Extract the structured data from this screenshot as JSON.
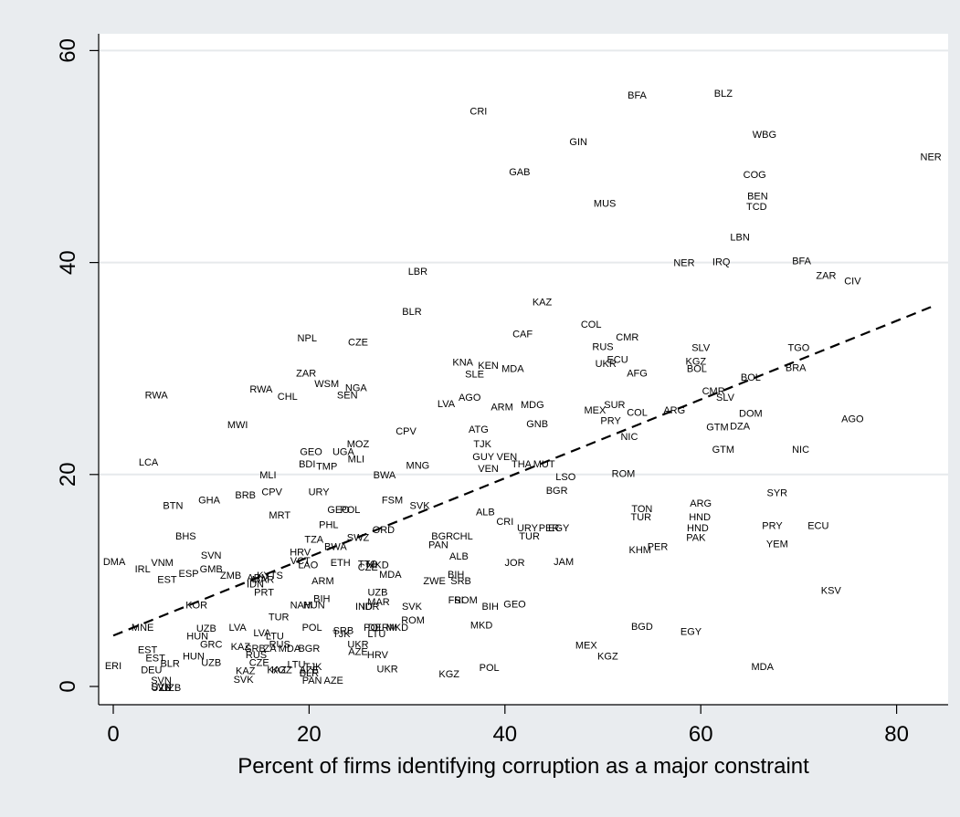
{
  "chart_data": {
    "type": "scatter",
    "title": "",
    "xlabel": "Percent of firms identifying corruption as a major constraint",
    "ylabel": "",
    "xlim": [
      -2,
      85
    ],
    "ylim": [
      -1.5,
      61.5
    ],
    "xticks": [
      0,
      20,
      40,
      60,
      80
    ],
    "yticks": [
      0,
      20,
      40,
      60
    ],
    "xtick_labels": [
      "0",
      "20",
      "40",
      "60",
      "80"
    ],
    "ytick_labels": [
      "0",
      "20",
      "40",
      "60"
    ],
    "grid": "horizontal",
    "legend": "none",
    "fit_line": {
      "style": "dashed",
      "x": [
        0,
        83.5
      ],
      "y": [
        4.8,
        35.8
      ]
    },
    "points": [
      {
        "label": "CRI",
        "x": 37.3,
        "y": 54.3
      },
      {
        "label": "BFA",
        "x": 53.5,
        "y": 55.8
      },
      {
        "label": "BLZ",
        "x": 62.3,
        "y": 56.0
      },
      {
        "label": "GIN",
        "x": 47.5,
        "y": 51.4
      },
      {
        "label": "WBG",
        "x": 66.5,
        "y": 52.1
      },
      {
        "label": "NER",
        "x": 83.5,
        "y": 50.0
      },
      {
        "label": "GAB",
        "x": 41.5,
        "y": 48.6
      },
      {
        "label": "COG",
        "x": 65.5,
        "y": 48.3
      },
      {
        "label": "BEN",
        "x": 65.8,
        "y": 46.3
      },
      {
        "label": "MUS",
        "x": 50.2,
        "y": 45.6
      },
      {
        "label": "TCD",
        "x": 65.7,
        "y": 45.3
      },
      {
        "label": "LBN",
        "x": 64.0,
        "y": 42.4
      },
      {
        "label": "NER",
        "x": 58.3,
        "y": 40.0
      },
      {
        "label": "IRQ",
        "x": 62.1,
        "y": 40.1
      },
      {
        "label": "BFA",
        "x": 70.3,
        "y": 40.2
      },
      {
        "label": "LBR",
        "x": 31.1,
        "y": 39.2
      },
      {
        "label": "ZAR",
        "x": 72.8,
        "y": 38.8
      },
      {
        "label": "CIV",
        "x": 75.5,
        "y": 38.3
      },
      {
        "label": "KAZ",
        "x": 43.8,
        "y": 36.3
      },
      {
        "label": "BLR",
        "x": 30.5,
        "y": 35.4
      },
      {
        "label": "COL",
        "x": 48.8,
        "y": 34.2
      },
      {
        "label": "CAF",
        "x": 41.8,
        "y": 33.3
      },
      {
        "label": "NPL",
        "x": 19.8,
        "y": 32.9
      },
      {
        "label": "CZE",
        "x": 25.0,
        "y": 32.5
      },
      {
        "label": "CMR",
        "x": 52.5,
        "y": 33.0
      },
      {
        "label": "RUS",
        "x": 50.0,
        "y": 32.1
      },
      {
        "label": "SLV",
        "x": 60.0,
        "y": 32.0
      },
      {
        "label": "TGO",
        "x": 70.0,
        "y": 32.0
      },
      {
        "label": "ECU",
        "x": 51.5,
        "y": 30.9
      },
      {
        "label": "UKR",
        "x": 50.3,
        "y": 30.5
      },
      {
        "label": "KGZ",
        "x": 59.5,
        "y": 30.7
      },
      {
        "label": "KNA",
        "x": 35.7,
        "y": 30.6
      },
      {
        "label": "KEN",
        "x": 38.3,
        "y": 30.3
      },
      {
        "label": "SLE",
        "x": 36.9,
        "y": 29.5
      },
      {
        "label": "MDA",
        "x": 40.8,
        "y": 30.0
      },
      {
        "label": "AFG",
        "x": 53.5,
        "y": 29.6
      },
      {
        "label": "BOL",
        "x": 59.6,
        "y": 30.0
      },
      {
        "label": "BRA",
        "x": 69.7,
        "y": 30.1
      },
      {
        "label": "ZAR",
        "x": 19.7,
        "y": 29.6
      },
      {
        "label": "BOL",
        "x": 65.1,
        "y": 29.2
      },
      {
        "label": "WSM",
        "x": 21.8,
        "y": 28.6
      },
      {
        "label": "NGA",
        "x": 24.8,
        "y": 28.2
      },
      {
        "label": "RWA",
        "x": 15.1,
        "y": 28.1
      },
      {
        "label": "SEN",
        "x": 23.9,
        "y": 27.5
      },
      {
        "label": "CHL",
        "x": 17.8,
        "y": 27.4
      },
      {
        "label": "RWA",
        "x": 4.4,
        "y": 27.5
      },
      {
        "label": "CMR",
        "x": 61.3,
        "y": 27.9
      },
      {
        "label": "AGO",
        "x": 36.4,
        "y": 27.3
      },
      {
        "label": "SLV",
        "x": 62.5,
        "y": 27.3
      },
      {
        "label": "LVA",
        "x": 34.0,
        "y": 26.7
      },
      {
        "label": "ARM",
        "x": 39.7,
        "y": 26.4
      },
      {
        "label": "MDG",
        "x": 42.8,
        "y": 26.6
      },
      {
        "label": "SUR",
        "x": 51.2,
        "y": 26.6
      },
      {
        "label": "MEX",
        "x": 49.2,
        "y": 26.1
      },
      {
        "label": "COL",
        "x": 53.5,
        "y": 25.9
      },
      {
        "label": "ARG",
        "x": 57.3,
        "y": 26.1
      },
      {
        "label": "DOM",
        "x": 65.1,
        "y": 25.8
      },
      {
        "label": "PRY",
        "x": 50.8,
        "y": 25.1
      },
      {
        "label": "GTM",
        "x": 61.7,
        "y": 24.5
      },
      {
        "label": "DZA",
        "x": 64.0,
        "y": 24.6
      },
      {
        "label": "AGO",
        "x": 75.5,
        "y": 25.3
      },
      {
        "label": "MWI",
        "x": 12.7,
        "y": 24.7
      },
      {
        "label": "GNB",
        "x": 43.3,
        "y": 24.8
      },
      {
        "label": "NIC",
        "x": 52.7,
        "y": 23.6
      },
      {
        "label": "CPV",
        "x": 29.9,
        "y": 24.1
      },
      {
        "label": "ATG",
        "x": 37.3,
        "y": 24.3
      },
      {
        "label": "TJK",
        "x": 37.7,
        "y": 22.9
      },
      {
        "label": "MOZ",
        "x": 25.0,
        "y": 22.9
      },
      {
        "label": "GEO",
        "x": 20.2,
        "y": 22.2
      },
      {
        "label": "UGA",
        "x": 23.5,
        "y": 22.2
      },
      {
        "label": "GTM",
        "x": 62.3,
        "y": 22.4
      },
      {
        "label": "NIC",
        "x": 70.2,
        "y": 22.4
      },
      {
        "label": "MLI",
        "x": 24.8,
        "y": 21.5
      },
      {
        "label": "GUY",
        "x": 37.8,
        "y": 21.7
      },
      {
        "label": "VEN",
        "x": 40.2,
        "y": 21.7
      },
      {
        "label": "THA",
        "x": 41.7,
        "y": 21.0
      },
      {
        "label": "MUT",
        "x": 44.0,
        "y": 21.0
      },
      {
        "label": "BDI",
        "x": 19.8,
        "y": 21.0
      },
      {
        "label": "TMP",
        "x": 21.8,
        "y": 20.8
      },
      {
        "label": "MNG",
        "x": 31.1,
        "y": 20.9
      },
      {
        "label": "VEN",
        "x": 38.3,
        "y": 20.6
      },
      {
        "label": "LCA",
        "x": 3.6,
        "y": 21.2
      },
      {
        "label": "BWA",
        "x": 27.7,
        "y": 20.0
      },
      {
        "label": "MLI",
        "x": 15.8,
        "y": 20.0
      },
      {
        "label": "ROM",
        "x": 52.1,
        "y": 20.1
      },
      {
        "label": "LSO",
        "x": 46.2,
        "y": 19.8
      },
      {
        "label": "BGR",
        "x": 45.3,
        "y": 18.5
      },
      {
        "label": "URY",
        "x": 21.0,
        "y": 18.4
      },
      {
        "label": "CPV",
        "x": 16.2,
        "y": 18.4
      },
      {
        "label": "BRB",
        "x": 13.5,
        "y": 18.1
      },
      {
        "label": "GHA",
        "x": 9.8,
        "y": 17.6
      },
      {
        "label": "FSM",
        "x": 28.5,
        "y": 17.6
      },
      {
        "label": "BTN",
        "x": 6.1,
        "y": 17.1
      },
      {
        "label": "SVK",
        "x": 31.3,
        "y": 17.1
      },
      {
        "label": "ARG",
        "x": 60.0,
        "y": 17.3
      },
      {
        "label": "SYR",
        "x": 67.8,
        "y": 18.3
      },
      {
        "label": "GEO",
        "x": 23.0,
        "y": 16.7
      },
      {
        "label": "POL",
        "x": 24.2,
        "y": 16.7
      },
      {
        "label": "TON",
        "x": 54.0,
        "y": 16.8
      },
      {
        "label": "ALB",
        "x": 38.0,
        "y": 16.5
      },
      {
        "label": "MRT",
        "x": 17.0,
        "y": 16.2
      },
      {
        "label": "HND",
        "x": 59.9,
        "y": 16.0
      },
      {
        "label": "TUR",
        "x": 53.9,
        "y": 16.0
      },
      {
        "label": "CRI",
        "x": 40.0,
        "y": 15.6
      },
      {
        "label": "PHL",
        "x": 22.0,
        "y": 15.3
      },
      {
        "label": "URY",
        "x": 42.3,
        "y": 15.0
      },
      {
        "label": "PER",
        "x": 44.5,
        "y": 15.0
      },
      {
        "label": "EGY",
        "x": 45.5,
        "y": 15.0
      },
      {
        "label": "PRY",
        "x": 67.3,
        "y": 15.2
      },
      {
        "label": "ECU",
        "x": 72.0,
        "y": 15.2
      },
      {
        "label": "HND",
        "x": 59.7,
        "y": 15.0
      },
      {
        "label": "ORD",
        "x": 27.6,
        "y": 14.8
      },
      {
        "label": "BHS",
        "x": 7.4,
        "y": 14.2
      },
      {
        "label": "BGR",
        "x": 33.6,
        "y": 14.2
      },
      {
        "label": "CHL",
        "x": 35.7,
        "y": 14.2
      },
      {
        "label": "TUR",
        "x": 42.5,
        "y": 14.2
      },
      {
        "label": "SWZ",
        "x": 25.0,
        "y": 14.1
      },
      {
        "label": "TZA",
        "x": 20.5,
        "y": 13.9
      },
      {
        "label": "PAK",
        "x": 59.5,
        "y": 14.1
      },
      {
        "label": "YEM",
        "x": 67.8,
        "y": 13.5
      },
      {
        "label": "PAN",
        "x": 33.2,
        "y": 13.4
      },
      {
        "label": "BWA",
        "x": 22.7,
        "y": 13.2
      },
      {
        "label": "PER",
        "x": 55.6,
        "y": 13.2
      },
      {
        "label": "KHM",
        "x": 53.8,
        "y": 12.9
      },
      {
        "label": "HRV",
        "x": 19.1,
        "y": 12.7
      },
      {
        "label": "SVN",
        "x": 10.0,
        "y": 12.4
      },
      {
        "label": "ALB",
        "x": 35.3,
        "y": 12.3
      },
      {
        "label": "VCT",
        "x": 19.1,
        "y": 11.9
      },
      {
        "label": "DMA",
        "x": 0.1,
        "y": 11.8
      },
      {
        "label": "VNM",
        "x": 5.0,
        "y": 11.7
      },
      {
        "label": "JOR",
        "x": 41.0,
        "y": 11.7
      },
      {
        "label": "JAM",
        "x": 46.0,
        "y": 11.8
      },
      {
        "label": "ETH",
        "x": 23.2,
        "y": 11.7
      },
      {
        "label": "TTO",
        "x": 26.0,
        "y": 11.6
      },
      {
        "label": "LAO",
        "x": 19.9,
        "y": 11.5
      },
      {
        "label": "MKD",
        "x": 27.0,
        "y": 11.5
      },
      {
        "label": "CZE",
        "x": 26.0,
        "y": 11.3
      },
      {
        "label": "IRL",
        "x": 3.0,
        "y": 11.1
      },
      {
        "label": "GMB",
        "x": 10.0,
        "y": 11.1
      },
      {
        "label": "ESP",
        "x": 7.7,
        "y": 10.7
      },
      {
        "label": "MDA",
        "x": 28.3,
        "y": 10.6
      },
      {
        "label": "ZMB",
        "x": 12.0,
        "y": 10.5
      },
      {
        "label": "KYTS",
        "x": 16.0,
        "y": 10.5
      },
      {
        "label": "ARM",
        "x": 14.8,
        "y": 10.3
      },
      {
        "label": "BIH",
        "x": 35.0,
        "y": 10.6
      },
      {
        "label": "EST",
        "x": 5.5,
        "y": 10.1
      },
      {
        "label": "MAR",
        "x": 15.3,
        "y": 10.1
      },
      {
        "label": "ZWE",
        "x": 32.8,
        "y": 10.0
      },
      {
        "label": "SRB",
        "x": 35.5,
        "y": 10.0
      },
      {
        "label": "ARM",
        "x": 21.4,
        "y": 10.0
      },
      {
        "label": "IDN",
        "x": 14.5,
        "y": 9.7
      },
      {
        "label": "KSV",
        "x": 73.3,
        "y": 9.1
      },
      {
        "label": "UZB",
        "x": 27.0,
        "y": 8.9
      },
      {
        "label": "PRT",
        "x": 15.4,
        "y": 8.9
      },
      {
        "label": "BIH",
        "x": 21.3,
        "y": 8.3
      },
      {
        "label": "MAR",
        "x": 27.1,
        "y": 8.0
      },
      {
        "label": "FSI",
        "x": 35.0,
        "y": 8.2
      },
      {
        "label": "ROM",
        "x": 36.0,
        "y": 8.2
      },
      {
        "label": "NAM",
        "x": 19.2,
        "y": 7.7
      },
      {
        "label": "HUN",
        "x": 20.5,
        "y": 7.7
      },
      {
        "label": "IND",
        "x": 25.6,
        "y": 7.6
      },
      {
        "label": "IDR",
        "x": 26.3,
        "y": 7.6
      },
      {
        "label": "BIH",
        "x": 38.5,
        "y": 7.6
      },
      {
        "label": "GEO",
        "x": 41.0,
        "y": 7.8
      },
      {
        "label": "SVK",
        "x": 30.5,
        "y": 7.6
      },
      {
        "label": "KOR",
        "x": 8.5,
        "y": 7.7
      },
      {
        "label": "TUR",
        "x": 16.9,
        "y": 6.6
      },
      {
        "label": "ROM",
        "x": 30.6,
        "y": 6.3
      },
      {
        "label": "MKD",
        "x": 37.6,
        "y": 5.8
      },
      {
        "label": "BGD",
        "x": 54.0,
        "y": 5.7
      },
      {
        "label": "EGY",
        "x": 59.0,
        "y": 5.2
      },
      {
        "label": "MNE",
        "x": 3.0,
        "y": 5.6
      },
      {
        "label": "UZB",
        "x": 9.5,
        "y": 5.5
      },
      {
        "label": "LVA",
        "x": 12.7,
        "y": 5.6
      },
      {
        "label": "POL",
        "x": 20.3,
        "y": 5.6
      },
      {
        "label": "POL",
        "x": 26.6,
        "y": 5.6
      },
      {
        "label": "DERM",
        "x": 27.5,
        "y": 5.6
      },
      {
        "label": "MKD",
        "x": 29.0,
        "y": 5.6
      },
      {
        "label": "SRB",
        "x": 23.5,
        "y": 5.3
      },
      {
        "label": "TJK",
        "x": 23.3,
        "y": 5.0
      },
      {
        "label": "LTU",
        "x": 26.9,
        "y": 5.0
      },
      {
        "label": "LVA",
        "x": 15.2,
        "y": 5.1
      },
      {
        "label": "LTU",
        "x": 16.5,
        "y": 4.8
      },
      {
        "label": "HUN",
        "x": 8.6,
        "y": 4.8
      },
      {
        "label": "GRC",
        "x": 10.0,
        "y": 4.0
      },
      {
        "label": "UKR",
        "x": 25.0,
        "y": 4.0
      },
      {
        "label": "RUS",
        "x": 17.0,
        "y": 4.0
      },
      {
        "label": "KAZ",
        "x": 13.0,
        "y": 3.8
      },
      {
        "label": "SRB",
        "x": 14.5,
        "y": 3.6
      },
      {
        "label": "ZA",
        "x": 16.0,
        "y": 3.6
      },
      {
        "label": "MDA",
        "x": 18.0,
        "y": 3.6
      },
      {
        "label": "BGR",
        "x": 20.0,
        "y": 3.6
      },
      {
        "label": "AZE",
        "x": 25.0,
        "y": 3.3
      },
      {
        "label": "EST",
        "x": 3.5,
        "y": 3.5
      },
      {
        "label": "MEX",
        "x": 48.3,
        "y": 3.9
      },
      {
        "label": "RUS",
        "x": 14.6,
        "y": 3.0
      },
      {
        "label": "HRV",
        "x": 27.0,
        "y": 3.0
      },
      {
        "label": "KGZ",
        "x": 50.5,
        "y": 2.9
      },
      {
        "label": "HUN",
        "x": 8.2,
        "y": 2.9
      },
      {
        "label": "EST",
        "x": 4.3,
        "y": 2.7
      },
      {
        "label": "CZE",
        "x": 14.9,
        "y": 2.3
      },
      {
        "label": "UZB",
        "x": 10.0,
        "y": 2.3
      },
      {
        "label": "BLR",
        "x": 5.8,
        "y": 2.2
      },
      {
        "label": "LTU",
        "x": 18.7,
        "y": 2.1
      },
      {
        "label": "TJK",
        "x": 20.4,
        "y": 1.9
      },
      {
        "label": "ERI",
        "x": 0.0,
        "y": 2.0
      },
      {
        "label": "KAZ",
        "x": 16.7,
        "y": 1.6
      },
      {
        "label": "KGZ",
        "x": 17.2,
        "y": 1.6
      },
      {
        "label": "AZE",
        "x": 20.0,
        "y": 1.6
      },
      {
        "label": "BLR",
        "x": 20.0,
        "y": 1.3
      },
      {
        "label": "UKR",
        "x": 28.0,
        "y": 1.7
      },
      {
        "label": "POL",
        "x": 38.4,
        "y": 1.8
      },
      {
        "label": "MDA",
        "x": 66.3,
        "y": 1.9
      },
      {
        "label": "DEU",
        "x": 3.9,
        "y": 1.6
      },
      {
        "label": "KAZ",
        "x": 13.5,
        "y": 1.5
      },
      {
        "label": "KGZ",
        "x": 34.3,
        "y": 1.2
      },
      {
        "label": "SVK",
        "x": 13.3,
        "y": 0.7
      },
      {
        "label": "SVN",
        "x": 4.9,
        "y": 0.6
      },
      {
        "label": "PAN",
        "x": 20.3,
        "y": 0.6
      },
      {
        "label": "AZE",
        "x": 22.5,
        "y": 0.6
      },
      {
        "label": "SVN",
        "x": 4.9,
        "y": 0.0
      },
      {
        "label": "UZB",
        "x": 5.9,
        "y": -0.1
      },
      {
        "label": "UZB",
        "x": 4.9,
        "y": -0.1
      }
    ]
  }
}
